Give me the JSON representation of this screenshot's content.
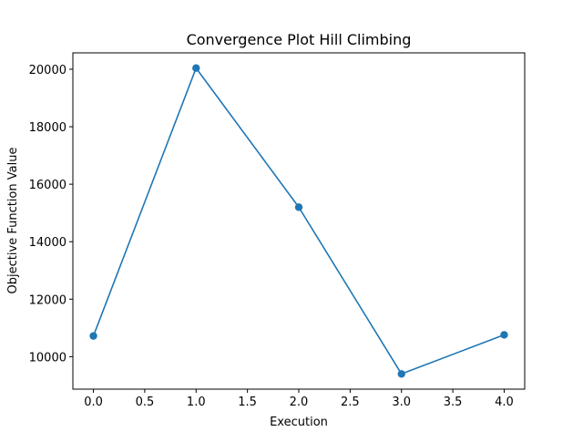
{
  "chart_data": {
    "type": "line",
    "title": "Convergence Plot Hill Climbing",
    "xlabel": "Execution",
    "ylabel": "Objective Function Value",
    "x": [
      0,
      1,
      2,
      3,
      4
    ],
    "series": [
      {
        "values": [
          10720,
          20040,
          15200,
          9400,
          10760
        ],
        "color": "#1f77b4",
        "marker": "circle"
      }
    ],
    "xlim": [
      -0.2,
      4.2
    ],
    "ylim": [
      8870,
      20570
    ],
    "xticks": [
      0.0,
      0.5,
      1.0,
      1.5,
      2.0,
      2.5,
      3.0,
      3.5,
      4.0
    ],
    "xtick_labels": [
      "0.0",
      "0.5",
      "1.0",
      "1.5",
      "2.0",
      "2.5",
      "3.0",
      "3.5",
      "4.0"
    ],
    "yticks": [
      10000,
      12000,
      14000,
      16000,
      18000,
      20000
    ],
    "ytick_labels": [
      "10000",
      "12000",
      "14000",
      "16000",
      "18000",
      "20000"
    ],
    "grid": false,
    "legend": false
  }
}
